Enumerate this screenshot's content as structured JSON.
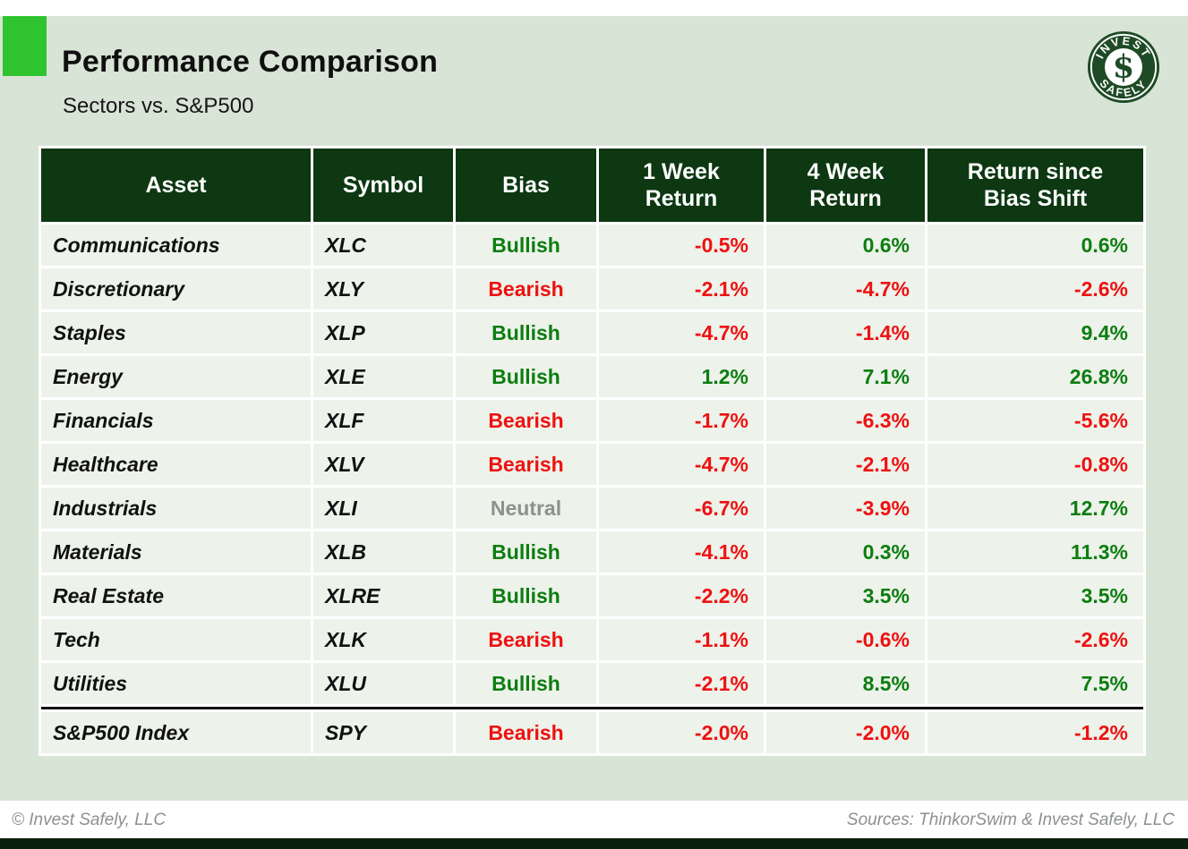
{
  "page": {
    "title": "Performance Comparison",
    "subtitle": "Sectors vs. S&P500"
  },
  "logo": {
    "arc_top": "INVEST",
    "arc_bottom": "SAFELY",
    "monogram": "$"
  },
  "chart_data": {
    "type": "table",
    "title": "Performance Comparison",
    "subtitle": "Sectors vs. S&P500",
    "units": "percent",
    "columns": [
      "Asset",
      "Symbol",
      "Bias",
      "1 Week\nReturn",
      "4 Week\nReturn",
      "Return since\nBias Shift"
    ],
    "rows": [
      {
        "asset": "Communications",
        "symbol": "XLC",
        "bias": "Bullish",
        "bias_color": "green",
        "week1": "-0.5%",
        "week1_color": "red",
        "week4": "0.6%",
        "week4_color": "green",
        "since": "0.6%",
        "since_color": "green"
      },
      {
        "asset": "Discretionary",
        "symbol": "XLY",
        "bias": "Bearish",
        "bias_color": "red",
        "week1": "-2.1%",
        "week1_color": "red",
        "week4": "-4.7%",
        "week4_color": "red",
        "since": "-2.6%",
        "since_color": "red"
      },
      {
        "asset": "Staples",
        "symbol": "XLP",
        "bias": "Bullish",
        "bias_color": "green",
        "week1": "-4.7%",
        "week1_color": "red",
        "week4": "-1.4%",
        "week4_color": "red",
        "since": "9.4%",
        "since_color": "green"
      },
      {
        "asset": "Energy",
        "symbol": "XLE",
        "bias": "Bullish",
        "bias_color": "green",
        "week1": "1.2%",
        "week1_color": "green",
        "week4": "7.1%",
        "week4_color": "green",
        "since": "26.8%",
        "since_color": "green"
      },
      {
        "asset": "Financials",
        "symbol": "XLF",
        "bias": "Bearish",
        "bias_color": "red",
        "week1": "-1.7%",
        "week1_color": "red",
        "week4": "-6.3%",
        "week4_color": "red",
        "since": "-5.6%",
        "since_color": "red"
      },
      {
        "asset": "Healthcare",
        "symbol": "XLV",
        "bias": "Bearish",
        "bias_color": "red",
        "week1": "-4.7%",
        "week1_color": "red",
        "week4": "-2.1%",
        "week4_color": "red",
        "since": "-0.8%",
        "since_color": "red"
      },
      {
        "asset": "Industrials",
        "symbol": "XLI",
        "bias": "Neutral",
        "bias_color": "gray",
        "week1": "-6.7%",
        "week1_color": "red",
        "week4": "-3.9%",
        "week4_color": "red",
        "since": "12.7%",
        "since_color": "green"
      },
      {
        "asset": "Materials",
        "symbol": "XLB",
        "bias": "Bullish",
        "bias_color": "green",
        "week1": "-4.1%",
        "week1_color": "red",
        "week4": "0.3%",
        "week4_color": "green",
        "since": "11.3%",
        "since_color": "green"
      },
      {
        "asset": "Real Estate",
        "symbol": "XLRE",
        "bias": "Bullish",
        "bias_color": "green",
        "week1": "-2.2%",
        "week1_color": "red",
        "week4": "3.5%",
        "week4_color": "green",
        "since": "3.5%",
        "since_color": "green"
      },
      {
        "asset": "Tech",
        "symbol": "XLK",
        "bias": "Bearish",
        "bias_color": "red",
        "week1": "-1.1%",
        "week1_color": "red",
        "week4": "-0.6%",
        "week4_color": "red",
        "since": "-2.6%",
        "since_color": "red"
      },
      {
        "asset": "Utilities",
        "symbol": "XLU",
        "bias": "Bullish",
        "bias_color": "green",
        "week1": "-2.1%",
        "week1_color": "red",
        "week4": "8.5%",
        "week4_color": "green",
        "since": "7.5%",
        "since_color": "green"
      },
      {
        "asset": "S&P500 Index",
        "symbol": "SPY",
        "bias": "Bearish",
        "bias_color": "red",
        "week1": "-2.0%",
        "week1_color": "red",
        "week4": "-2.0%",
        "week4_color": "red",
        "since": "-1.2%",
        "since_color": "red",
        "divider_before": true
      }
    ]
  },
  "footer": {
    "left": "© Invest Safely, LLC",
    "right": "Sources: ThinkorSwim & Invest Safely, LLC"
  },
  "colors": {
    "positive": "#0c7d10",
    "negative": "#ee1111",
    "neutral": "#8f8f8f",
    "header_bg": "#0d3812",
    "row_bg": "#edf2ea",
    "page_bg": "#d8e4d6",
    "accent_square": "#2fc32f",
    "bottom_bar": "#0a1f0c",
    "logo_green": "#1e4b25",
    "footer_text": "#8c918c"
  }
}
